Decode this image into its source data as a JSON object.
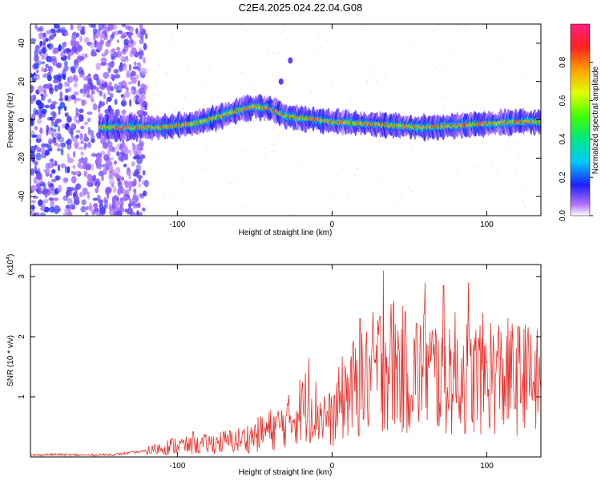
{
  "title": "C2E4.2025.024.22.04.G08",
  "chart_data": [
    {
      "type": "heatmap",
      "title": "C2E4.2025.024.22.04.G08",
      "xlabel": "Height of straight line (km)",
      "ylabel": "Frequency (Hz)",
      "xlim": [
        -195,
        135
      ],
      "ylim": [
        -50,
        50
      ],
      "xticks": [
        -100,
        0,
        100
      ],
      "yticks": [
        -40,
        -20,
        0,
        20,
        40
      ],
      "colorbar": {
        "label": "Normalized spectral amplitude",
        "range": [
          0,
          1
        ],
        "ticks": [
          0.0,
          0.2,
          0.4,
          0.6,
          0.8
        ],
        "colors": [
          "#ffffff",
          "#a040ff",
          "#2020ff",
          "#00c8ff",
          "#00ff60",
          "#c8ff00",
          "#ffa000",
          "#ff2020",
          "#ff2080"
        ]
      },
      "ridge": {
        "x": [
          -150,
          -130,
          -110,
          -90,
          -75,
          -60,
          -50,
          -40,
          -35,
          -30,
          -20,
          -10,
          0,
          20,
          40,
          60,
          80,
          100,
          120,
          135
        ],
        "frequency": [
          -4,
          -4,
          -4,
          -2,
          1,
          5,
          7,
          6,
          4,
          2,
          1,
          0,
          -1,
          -2,
          -3,
          -4,
          -3,
          -2,
          -1,
          -1
        ]
      },
      "features": [
        {
          "x": -27,
          "frequency": 31
        },
        {
          "x": -33,
          "frequency": 20
        }
      ]
    },
    {
      "type": "line",
      "xlabel": "Height of straight line (km)",
      "ylabel": "SNR (10 * v/v)",
      "y_multiplier": "(x10^4)",
      "xlim": [
        -195,
        135
      ],
      "ylim": [
        0,
        3.2
      ],
      "xticks": [
        -100,
        0,
        100
      ],
      "yticks": [
        1,
        2,
        3
      ],
      "color": "#e8302a",
      "series": [
        {
          "x": [
            -195,
            -180,
            -160,
            -140,
            -120,
            -110,
            -100,
            -90,
            -80,
            -70,
            -60,
            -50,
            -40,
            -30,
            -20,
            -15,
            -10,
            -5,
            0,
            5,
            10,
            20,
            30,
            35,
            40,
            50,
            60,
            70,
            80,
            90,
            100,
            110,
            120,
            130,
            135
          ],
          "values": [
            0.03,
            0.04,
            0.03,
            0.04,
            0.1,
            0.15,
            0.2,
            0.18,
            0.22,
            0.25,
            0.28,
            0.35,
            0.45,
            0.55,
            0.8,
            0.9,
            0.75,
            0.7,
            0.6,
            0.9,
            1.1,
            1.2,
            1.5,
            1.6,
            1.5,
            1.4,
            1.45,
            1.35,
            1.4,
            1.3,
            1.4,
            1.35,
            1.3,
            1.25,
            1.2
          ],
          "peaks": [
            {
              "x": -90,
              "value": 0.42
            },
            {
              "x": -15,
              "value": 1.65
            },
            {
              "x": 18,
              "value": 2.3
            },
            {
              "x": 33,
              "value": 3.1
            },
            {
              "x": 40,
              "value": 2.6
            },
            {
              "x": 60,
              "value": 2.9
            },
            {
              "x": 72,
              "value": 2.85
            },
            {
              "x": 88,
              "value": 2.9
            },
            {
              "x": 125,
              "value": 2.2
            }
          ]
        }
      ]
    }
  ]
}
